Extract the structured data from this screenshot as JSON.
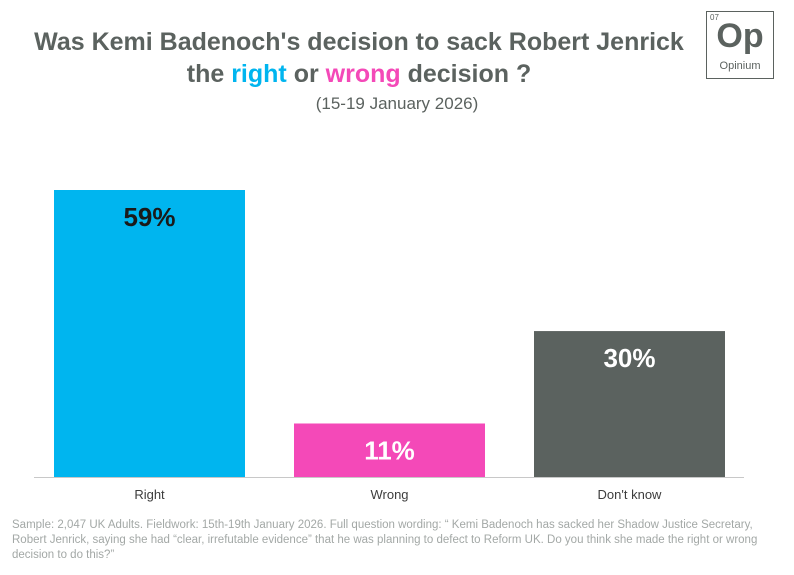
{
  "title": {
    "line1": "Was Kemi Badenoch's decision to sack Robert Jenrick",
    "line2_prefix": "the ",
    "line2_right": "right",
    "line2_mid": " or ",
    "line2_wrong": "wrong",
    "line2_suffix": " decision ?",
    "subtitle": "(15-19 January 2026)"
  },
  "logo": {
    "number": "07",
    "symbol": "Op",
    "name": "Opinium"
  },
  "chart_data": {
    "type": "bar",
    "categories": [
      "Right",
      "Wrong",
      "Don't know"
    ],
    "values": [
      59,
      11,
      30
    ],
    "value_labels": [
      "59%",
      "11%",
      "30%"
    ],
    "colors": [
      "#00b5ef",
      "#f449b8",
      "#5b625f"
    ],
    "label_colors": [
      "#1a1a1a",
      "#ffffff",
      "#ffffff"
    ],
    "ylim": [
      0,
      59
    ],
    "grid": false,
    "legend": "none",
    "xlabel": "",
    "ylabel": ""
  },
  "footnote": "Sample: 2,047 UK Adults. Fieldwork: 15th-19th January 2026. Full question wording: “ Kemi Badenoch has sacked her Shadow Justice Secretary, Robert Jenrick, saying she had “clear, irrefutable evidence” that he was planning to defect to Reform UK. Do you think she made the right or wrong decision to do this?”"
}
